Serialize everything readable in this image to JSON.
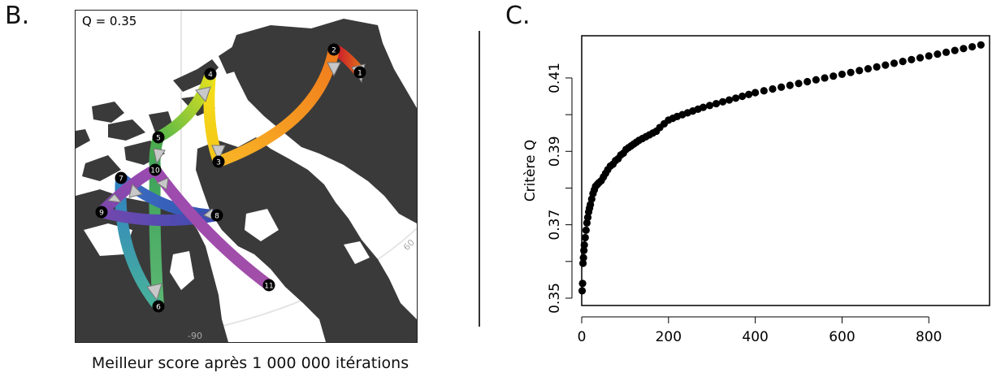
{
  "panel_b": {
    "letter": "B.",
    "q_label": "Q = 0.35",
    "caption": "Meilleur score après 1 000 000 itérations",
    "graticule_labels": [
      "60",
      "-90"
    ],
    "node_labels": [
      "1",
      "2",
      "3",
      "4",
      "5",
      "6",
      "7",
      "8",
      "9",
      "10",
      "11"
    ]
  },
  "panel_c": {
    "letter": "C."
  },
  "colors": {
    "land": "#3a3a3a",
    "ink": "#000000"
  },
  "chart_data": {
    "type": "scatter",
    "title": "",
    "xlabel": "",
    "ylabel": "Critère Q",
    "xlim": [
      0,
      940
    ],
    "ylim": [
      0.348,
      0.4215
    ],
    "xticks": [
      0,
      200,
      400,
      600,
      800
    ],
    "yticks": [
      0.35,
      0.37,
      0.39,
      0.41
    ],
    "ytick_labels": [
      "0.35",
      "0.37",
      "0.39",
      "0.41"
    ],
    "grid": false,
    "x": [
      1,
      2,
      3,
      4,
      5,
      6,
      8,
      10,
      12,
      14,
      16,
      18,
      20,
      23,
      26,
      29,
      32,
      36,
      40,
      45,
      50,
      55,
      60,
      66,
      72,
      78,
      84,
      90,
      96,
      102,
      108,
      114,
      120,
      126,
      132,
      140,
      148,
      156,
      164,
      172,
      180,
      190,
      200,
      210,
      220,
      232,
      244,
      256,
      268,
      280,
      295,
      310,
      325,
      340,
      355,
      370,
      385,
      400,
      420,
      440,
      460,
      480,
      500,
      520,
      540,
      560,
      580,
      600,
      620,
      640,
      660,
      680,
      700,
      720,
      740,
      760,
      780,
      800,
      820,
      840,
      860,
      880,
      900,
      920
    ],
    "y": [
      0.352,
      0.354,
      0.3595,
      0.361,
      0.363,
      0.3645,
      0.3665,
      0.3685,
      0.3705,
      0.372,
      0.3735,
      0.3745,
      0.3755,
      0.377,
      0.3785,
      0.3795,
      0.3805,
      0.381,
      0.3815,
      0.382,
      0.383,
      0.384,
      0.385,
      0.386,
      0.3865,
      0.3875,
      0.388,
      0.389,
      0.3895,
      0.3905,
      0.391,
      0.3915,
      0.392,
      0.3925,
      0.393,
      0.3935,
      0.394,
      0.3945,
      0.395,
      0.3955,
      0.3965,
      0.3975,
      0.3985,
      0.399,
      0.3995,
      0.4,
      0.4005,
      0.401,
      0.4015,
      0.402,
      0.4025,
      0.403,
      0.4035,
      0.404,
      0.4045,
      0.405,
      0.4055,
      0.406,
      0.4065,
      0.407,
      0.4075,
      0.408,
      0.4085,
      0.409,
      0.4095,
      0.41,
      0.4105,
      0.411,
      0.4115,
      0.412,
      0.4125,
      0.413,
      0.4135,
      0.414,
      0.4145,
      0.415,
      0.4155,
      0.416,
      0.4165,
      0.417,
      0.4175,
      0.418,
      0.4185,
      0.419
    ]
  }
}
